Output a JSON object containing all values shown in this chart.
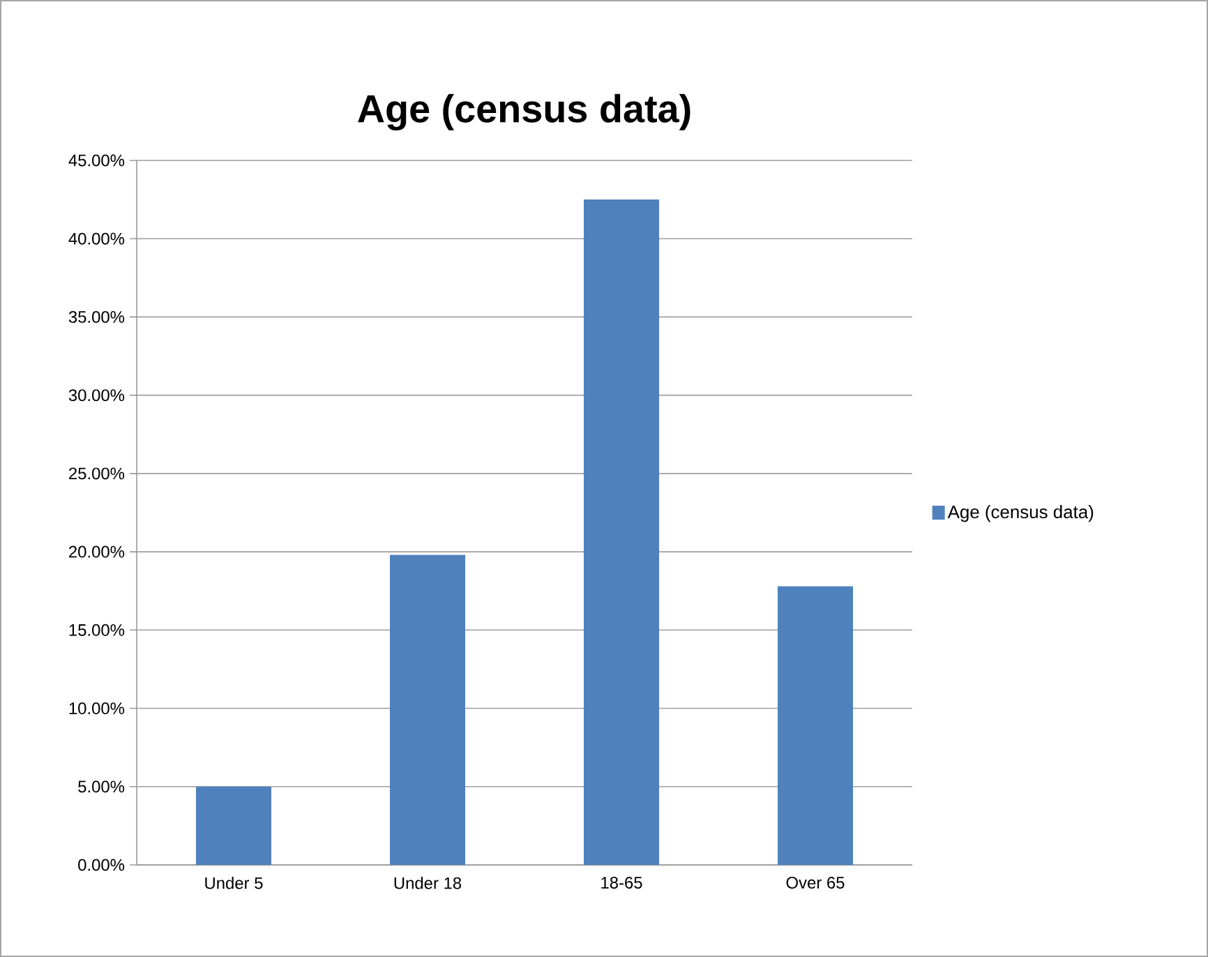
{
  "chart_data": {
    "type": "bar",
    "title": "Age (census data)",
    "categories": [
      "Under 5",
      "Under 18",
      "18-65",
      "Over 65"
    ],
    "series": [
      {
        "name": "Age (census data)",
        "color": "#4f81bd",
        "values": [
          5.0,
          19.8,
          42.5,
          17.8
        ]
      }
    ],
    "ylim": [
      0,
      45
    ],
    "yticks": [
      {
        "value": 0,
        "label": "0.00%"
      },
      {
        "value": 5,
        "label": "5.00%"
      },
      {
        "value": 10,
        "label": "10.00%"
      },
      {
        "value": 15,
        "label": "15.00%"
      },
      {
        "value": 20,
        "label": "20.00%"
      },
      {
        "value": 25,
        "label": "25.00%"
      },
      {
        "value": 30,
        "label": "30.00%"
      },
      {
        "value": 35,
        "label": "35.00%"
      },
      {
        "value": 40,
        "label": "40.00%"
      },
      {
        "value": 45,
        "label": "45.00%"
      }
    ],
    "grid": "y",
    "legend": "right"
  }
}
